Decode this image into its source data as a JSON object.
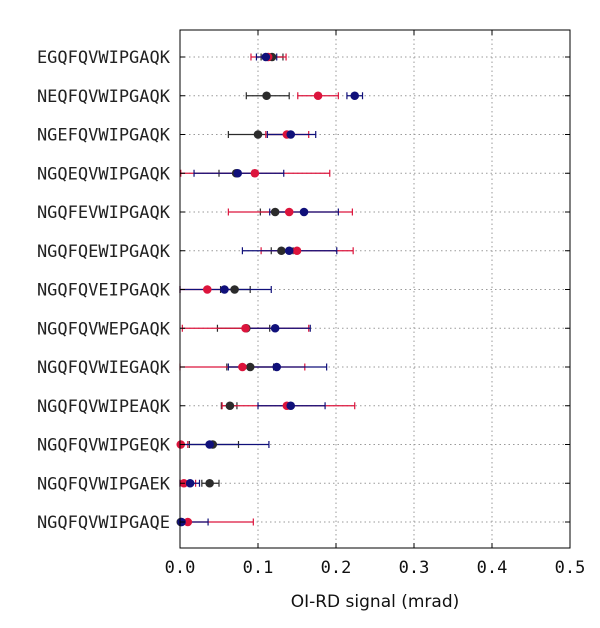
{
  "chart_data": {
    "type": "scatter",
    "xlabel": "OI-RD signal (mrad)",
    "ylabel": "",
    "title": "",
    "xlim": [
      0.0,
      0.5
    ],
    "xticks": [
      "0.0",
      "0.1",
      "0.2",
      "0.3",
      "0.4",
      "0.5"
    ],
    "grid": true,
    "categories": [
      "EGQFQVWIPGAQK",
      "NEQFQVWIPGAQK",
      "NGEFQVWIPGAQK",
      "NGQEQVWIPGAQK",
      "NGQFEVWIPGAQK",
      "NGQFQEWIPGAQK",
      "NGQFQVEIPGAQK",
      "NGQFQVWEPGAQK",
      "NGQFQVWIEGAQK",
      "NGQFQVWIPEAQK",
      "NGQFQVWIPGEQK",
      "NGQFQVWIPGAEK",
      "NGQFQVWIPGAQE"
    ],
    "series": [
      {
        "color": "#2b2b2b",
        "values": [
          0.118,
          0.111,
          0.1,
          0.072,
          0.122,
          0.13,
          0.07,
          0.085,
          0.09,
          0.064,
          0.042,
          0.038,
          0.001
        ],
        "err_low": [
          0.104,
          0.085,
          0.062,
          0.05,
          0.103,
          0.117,
          0.052,
          0.048,
          0.06,
          0.053,
          0.012,
          0.028,
          0.0
        ],
        "err_high": [
          0.132,
          0.14,
          0.135,
          0.093,
          0.142,
          0.145,
          0.09,
          0.115,
          0.12,
          0.073,
          0.075,
          0.05,
          0.003
        ]
      },
      {
        "color": "#dc143c",
        "values": [
          0.113,
          0.177,
          0.137,
          0.096,
          0.14,
          0.15,
          0.035,
          0.084,
          0.08,
          0.137,
          0.001,
          0.005,
          0.01
        ],
        "err_low": [
          0.091,
          0.151,
          0.11,
          0.001,
          0.062,
          0.104,
          0.0,
          0.003,
          0.0,
          0.054,
          0.0,
          0.0,
          0.0
        ],
        "err_high": [
          0.136,
          0.203,
          0.165,
          0.192,
          0.221,
          0.222,
          0.07,
          0.165,
          0.16,
          0.224,
          0.01,
          0.02,
          0.094
        ]
      },
      {
        "color": "#10107a",
        "values": [
          0.11,
          0.224,
          0.142,
          0.074,
          0.159,
          0.14,
          0.057,
          0.122,
          0.124,
          0.142,
          0.038,
          0.013,
          0.002
        ],
        "err_low": [
          0.098,
          0.214,
          0.112,
          0.018,
          0.115,
          0.08,
          0.0,
          0.082,
          0.062,
          0.1,
          0.0,
          0.0,
          0.0
        ],
        "err_high": [
          0.124,
          0.234,
          0.174,
          0.133,
          0.203,
          0.201,
          0.117,
          0.167,
          0.188,
          0.186,
          0.114,
          0.025,
          0.036
        ]
      }
    ]
  }
}
